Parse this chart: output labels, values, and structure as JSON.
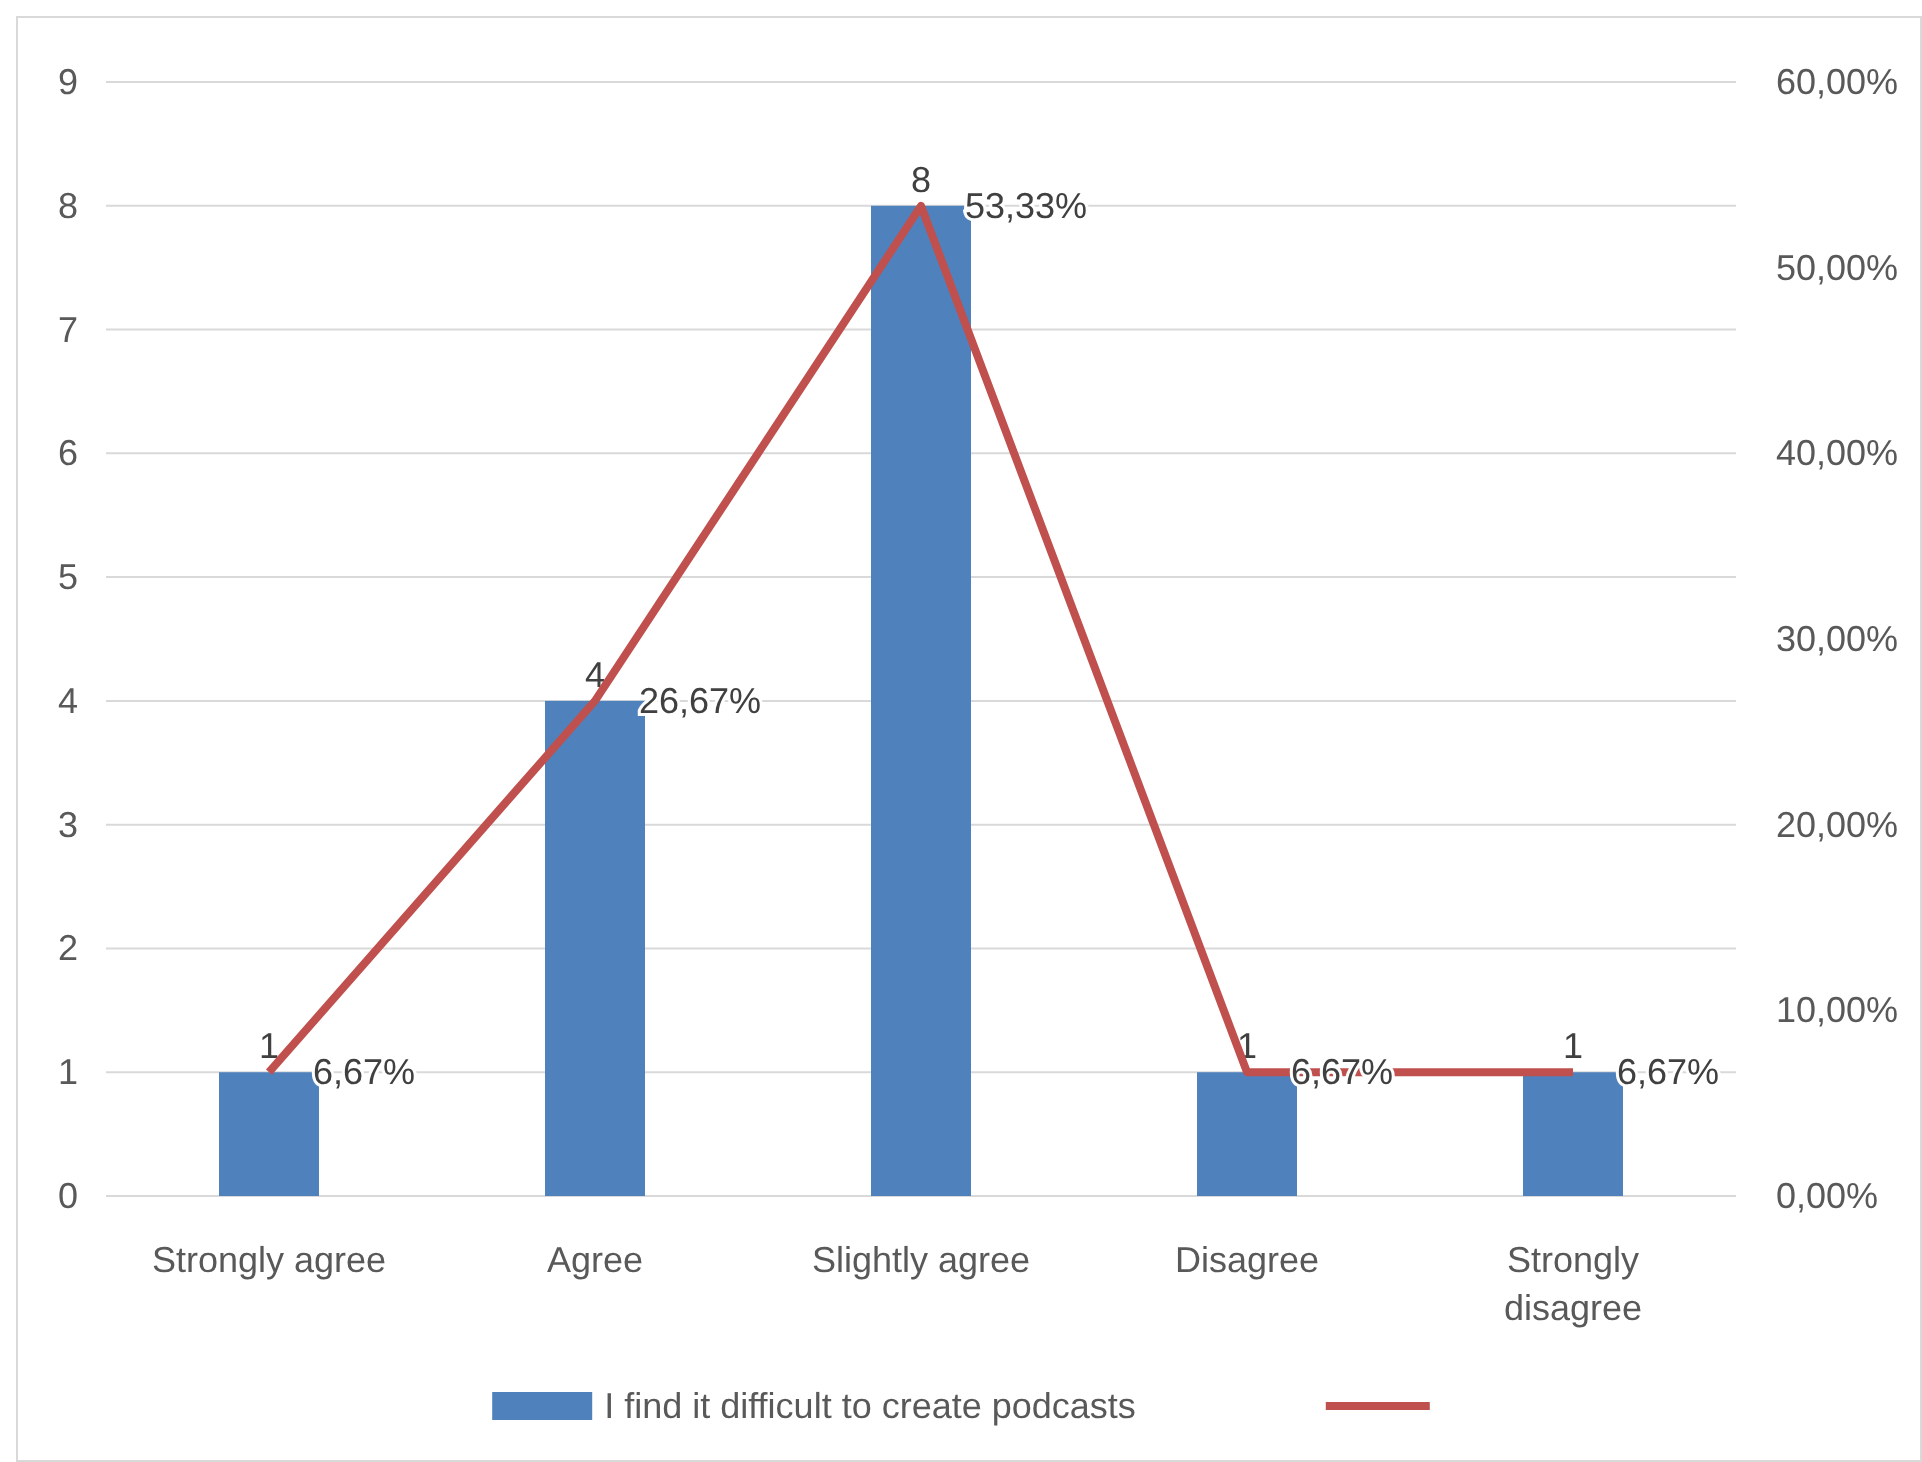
{
  "chart_data": {
    "type": "bar",
    "categories": [
      "Strongly agree",
      "Agree",
      "Slightly agree",
      "Disagree",
      "Strongly disagree"
    ],
    "series": [
      {
        "name": "I find it difficult to create podcasts",
        "color": "#4f81bd",
        "values": [
          1,
          4,
          8,
          1,
          1
        ],
        "value_labels": [
          "1",
          "4",
          "8",
          "1",
          "1"
        ]
      },
      {
        "type": "line",
        "axis": "y2",
        "color": "#c0504d",
        "values": [
          6.67,
          26.67,
          53.33,
          6.67,
          6.67
        ],
        "value_labels": [
          "6,67%",
          "26,67%",
          "53,33%",
          "6,67%",
          "6,67%"
        ]
      }
    ],
    "ylim": [
      0,
      9
    ],
    "yticks": [
      0,
      1,
      2,
      3,
      4,
      5,
      6,
      7,
      8,
      9
    ],
    "y2lim": [
      0,
      60
    ],
    "y2ticks": [
      {
        "value": 0,
        "label": "0,00%"
      },
      {
        "value": 10,
        "label": "10,00%"
      },
      {
        "value": 20,
        "label": "20,00%"
      },
      {
        "value": 30,
        "label": "30,00%"
      },
      {
        "value": 40,
        "label": "40,00%"
      },
      {
        "value": 50,
        "label": "50,00%"
      },
      {
        "value": 60,
        "label": "60,00%"
      }
    ],
    "grid": "y",
    "legend": "bottom",
    "marker": "none",
    "line_style": "solid"
  }
}
